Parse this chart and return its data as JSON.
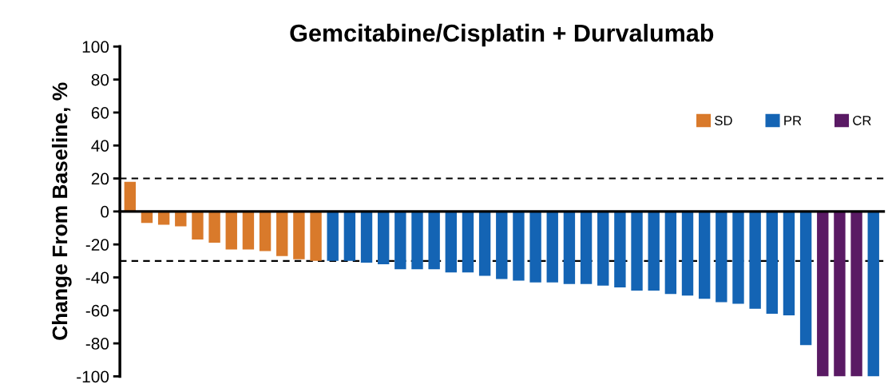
{
  "chart_data": {
    "type": "bar",
    "title": "Gemcitabine/Cisplatin + Durvalumab",
    "ylabel": "Change From Baseline, %",
    "categories": [
      null,
      null,
      null,
      null,
      null,
      null,
      null,
      null,
      null,
      null,
      null,
      null,
      null,
      null,
      null,
      null,
      null,
      null,
      null,
      null,
      null,
      null,
      null,
      null,
      null,
      null,
      null,
      null,
      null,
      null,
      null,
      null,
      null,
      null,
      null,
      null,
      null,
      null,
      null,
      null,
      null,
      null,
      null,
      null,
      null
    ],
    "series": [
      {
        "name": "SD",
        "color": "#d97a2b",
        "values": [
          18,
          -7,
          -8,
          -9,
          -17,
          -19,
          -23,
          -23,
          -24,
          -27,
          -29,
          -30,
          null,
          null,
          null,
          null,
          null,
          null,
          null,
          null,
          null,
          null,
          null,
          null,
          null,
          null,
          null,
          null,
          null,
          null,
          null,
          null,
          null,
          null,
          null,
          null,
          null,
          null,
          null,
          null,
          null,
          null,
          null,
          null,
          null
        ]
      },
      {
        "name": "PR",
        "color": "#1464b4",
        "values": [
          null,
          null,
          null,
          null,
          null,
          null,
          null,
          null,
          null,
          null,
          null,
          null,
          -30,
          -30,
          -31,
          -32,
          -35,
          -35,
          -35,
          -37,
          -37,
          -39,
          -41,
          -42,
          -43,
          -43,
          -44,
          -44,
          -45,
          -46,
          -48,
          -48,
          -50,
          -51,
          -53,
          -55,
          -56,
          -59,
          -62,
          -63,
          -81,
          null,
          null,
          null,
          -100
        ]
      },
      {
        "name": "CR",
        "color": "#5a1a64",
        "values": [
          null,
          null,
          null,
          null,
          null,
          null,
          null,
          null,
          null,
          null,
          null,
          null,
          null,
          null,
          null,
          null,
          null,
          null,
          null,
          null,
          null,
          null,
          null,
          null,
          null,
          null,
          null,
          null,
          null,
          null,
          null,
          null,
          null,
          null,
          null,
          null,
          null,
          null,
          null,
          null,
          null,
          -100,
          -100,
          -100,
          null
        ]
      }
    ],
    "ylim": [
      -100,
      100
    ],
    "yticks": [
      -100,
      -80,
      -60,
      -40,
      -20,
      0,
      20,
      40,
      60,
      80,
      100
    ],
    "ref_lines": [
      {
        "axis": "y",
        "value": 20,
        "line_style": "dashed"
      },
      {
        "axis": "y",
        "value": -30,
        "line_style": "dashed"
      }
    ],
    "legend": "top right",
    "grid": false
  }
}
